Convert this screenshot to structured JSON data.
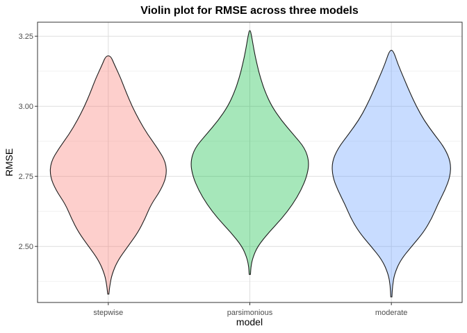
{
  "chart_data": {
    "type": "violin",
    "title": "Violin plot for RMSE across three models",
    "xlabel": "model",
    "ylabel": "RMSE",
    "ylim": [
      2.3,
      3.3
    ],
    "y_ticks": [
      2.5,
      2.75,
      3.0,
      3.25
    ],
    "y_tick_labels": [
      "2.50",
      "2.75",
      "3.00",
      "3.25"
    ],
    "grid": true,
    "categories": [
      "stepwise",
      "parsimonious",
      "moderate"
    ],
    "series": [
      {
        "name": "stepwise",
        "fill": "#f8766d",
        "min": 2.33,
        "max": 3.18,
        "profile": [
          [
            2.33,
            0.01
          ],
          [
            2.36,
            0.025
          ],
          [
            2.4,
            0.06
          ],
          [
            2.45,
            0.16
          ],
          [
            2.5,
            0.33
          ],
          [
            2.55,
            0.5
          ],
          [
            2.6,
            0.62
          ],
          [
            2.65,
            0.72
          ],
          [
            2.7,
            0.88
          ],
          [
            2.75,
            0.98
          ],
          [
            2.8,
            0.97
          ],
          [
            2.85,
            0.83
          ],
          [
            2.9,
            0.66
          ],
          [
            2.95,
            0.52
          ],
          [
            3.0,
            0.4
          ],
          [
            3.05,
            0.3
          ],
          [
            3.1,
            0.21
          ],
          [
            3.15,
            0.1
          ],
          [
            3.18,
            0.04
          ]
        ]
      },
      {
        "name": "parsimonious",
        "fill": "#00ba38",
        "min": 2.4,
        "max": 3.27,
        "profile": [
          [
            2.4,
            0.01
          ],
          [
            2.43,
            0.02
          ],
          [
            2.46,
            0.05
          ],
          [
            2.5,
            0.13
          ],
          [
            2.55,
            0.32
          ],
          [
            2.6,
            0.54
          ],
          [
            2.65,
            0.72
          ],
          [
            2.7,
            0.86
          ],
          [
            2.75,
            0.96
          ],
          [
            2.8,
            1.0
          ],
          [
            2.85,
            0.93
          ],
          [
            2.9,
            0.73
          ],
          [
            2.95,
            0.53
          ],
          [
            3.0,
            0.37
          ],
          [
            3.05,
            0.26
          ],
          [
            3.1,
            0.18
          ],
          [
            3.15,
            0.12
          ],
          [
            3.2,
            0.07
          ],
          [
            3.25,
            0.03
          ],
          [
            3.27,
            0.01
          ]
        ]
      },
      {
        "name": "moderate",
        "fill": "#619cff",
        "min": 2.32,
        "max": 3.2,
        "profile": [
          [
            2.32,
            0.01
          ],
          [
            2.36,
            0.02
          ],
          [
            2.4,
            0.05
          ],
          [
            2.45,
            0.15
          ],
          [
            2.5,
            0.34
          ],
          [
            2.55,
            0.54
          ],
          [
            2.6,
            0.68
          ],
          [
            2.65,
            0.78
          ],
          [
            2.7,
            0.9
          ],
          [
            2.75,
            0.99
          ],
          [
            2.8,
            1.0
          ],
          [
            2.85,
            0.9
          ],
          [
            2.9,
            0.72
          ],
          [
            2.95,
            0.55
          ],
          [
            3.0,
            0.42
          ],
          [
            3.05,
            0.31
          ],
          [
            3.1,
            0.21
          ],
          [
            3.15,
            0.11
          ],
          [
            3.2,
            0.03
          ]
        ]
      }
    ]
  }
}
